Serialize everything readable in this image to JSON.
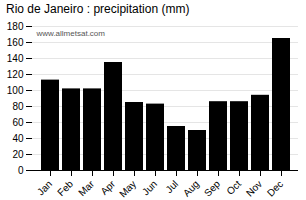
{
  "chart_data": {
    "type": "bar",
    "title": "Rio de Janeiro : precipitation (mm)",
    "categories": [
      "Jan",
      "Feb",
      "Mar",
      "Apr",
      "May",
      "Jun",
      "Jul",
      "Aug",
      "Sep",
      "Oct",
      "Nov",
      "Dec"
    ],
    "values": [
      113,
      102,
      102,
      135,
      85,
      83,
      55,
      50,
      86,
      86,
      94,
      165
    ],
    "ylim": [
      0,
      180
    ],
    "yticks": [
      0,
      20,
      40,
      60,
      80,
      100,
      120,
      140,
      160,
      180
    ],
    "grid": true,
    "annotations": [
      "www.allmetsat.com"
    ]
  }
}
